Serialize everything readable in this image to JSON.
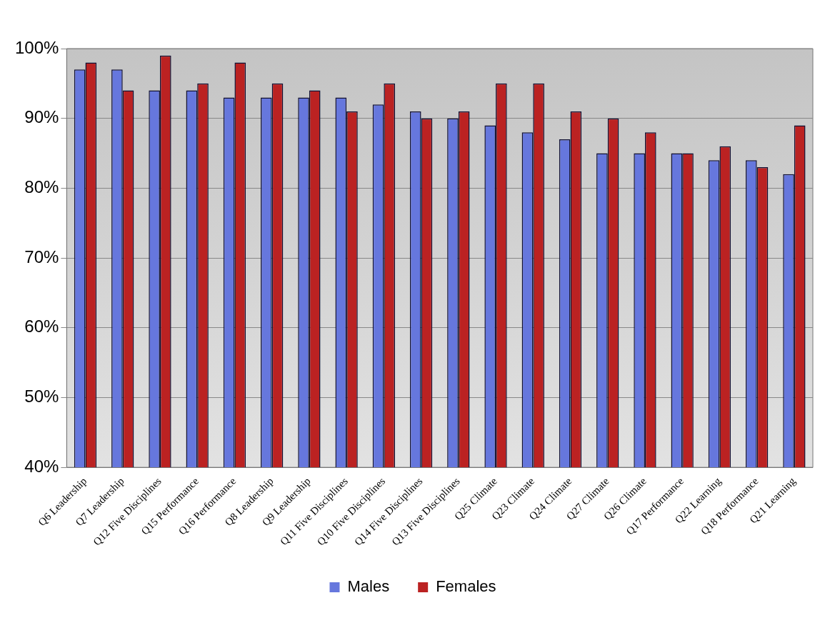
{
  "chart_data": {
    "type": "bar",
    "categories": [
      "Q6 Leadership",
      "Q7 Leadership",
      "Q12 Five Disciplines",
      "Q15 Performance",
      "Q16 Performance",
      "Q8 Leadership",
      "Q9 Leadership",
      "Q11 Five Disciplines",
      "Q10 Five Disciplines",
      "Q14 Five Disciplines",
      "Q13 Five Disciplines",
      "Q25 Climate",
      "Q23 Climate",
      "Q24 Climate",
      "Q27 Climate",
      "Q26 Climate",
      "Q17 Performance",
      "Q22 Learning",
      "Q18 Performance",
      "Q21 Learning"
    ],
    "series": [
      {
        "name": "Males",
        "color": "#6677dd",
        "values": [
          97,
          97,
          94,
          94,
          93,
          93,
          93,
          93,
          92,
          91,
          90,
          89,
          88,
          87,
          85,
          85,
          85,
          84,
          84,
          82
        ]
      },
      {
        "name": "Females",
        "color": "#bb2222",
        "values": [
          98,
          94,
          99,
          95,
          98,
          95,
          94,
          91,
          95,
          90,
          91,
          95,
          95,
          91,
          90,
          88,
          85,
          86,
          83,
          89
        ]
      }
    ],
    "ylim": [
      40,
      100
    ],
    "yticks": [
      {
        "value": 40,
        "label": "40%"
      },
      {
        "value": 50,
        "label": "50%"
      },
      {
        "value": 60,
        "label": "60%"
      },
      {
        "value": 70,
        "label": "70%"
      },
      {
        "value": 80,
        "label": "80%"
      },
      {
        "value": 90,
        "label": "90%"
      },
      {
        "value": 100,
        "label": "100%"
      }
    ],
    "grid": "y",
    "legend": "bottom"
  }
}
